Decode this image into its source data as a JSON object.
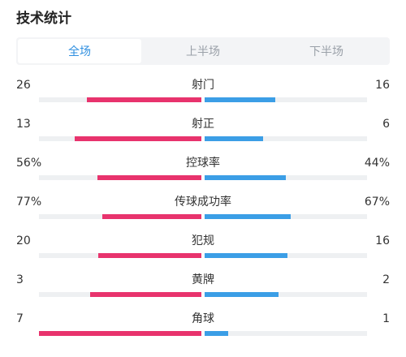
{
  "title": "技术统计",
  "tabs": [
    {
      "label": "全场",
      "active": true
    },
    {
      "label": "上半场",
      "active": false
    },
    {
      "label": "下半场",
      "active": false
    }
  ],
  "colors": {
    "home": "#e8336d",
    "away": "#3b9ee6",
    "accent": "#2f8fe0"
  },
  "stats": [
    {
      "label": "射门",
      "left": "26",
      "right": "16",
      "left_fill": 0.705,
      "right_fill": 0.435
    },
    {
      "label": "射正",
      "left": "13",
      "right": "6",
      "left_fill": 0.78,
      "right_fill": 0.36
    },
    {
      "label": "控球率",
      "left": "56%",
      "right": "44%",
      "left_fill": 0.64,
      "right_fill": 0.5
    },
    {
      "label": "传球成功率",
      "left": "77%",
      "right": "67%",
      "left_fill": 0.61,
      "right_fill": 0.53
    },
    {
      "label": "犯规",
      "left": "20",
      "right": "16",
      "left_fill": 0.635,
      "right_fill": 0.51
    },
    {
      "label": "黄牌",
      "left": "3",
      "right": "2",
      "left_fill": 0.685,
      "right_fill": 0.455
    },
    {
      "label": "角球",
      "left": "7",
      "right": "1",
      "left_fill": 1.0,
      "right_fill": 0.145
    }
  ]
}
